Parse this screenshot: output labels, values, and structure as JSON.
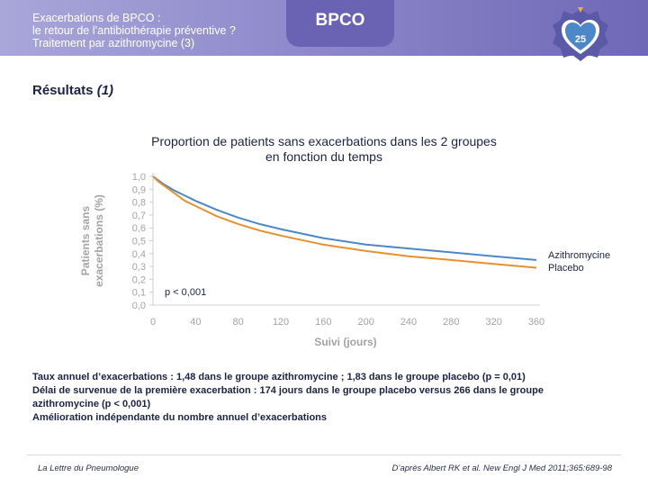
{
  "header": {
    "subtitle_lines": [
      "Exacerbations de BPCO :",
      "le retour de l’antibiothérapie préventive ?",
      "Traitement par azithromycine (3)"
    ],
    "tab_label": "BPCO",
    "badge_number": "25"
  },
  "section": {
    "title": "Résultats",
    "suffix": "(1)"
  },
  "chart_title_lines": [
    "Proportion de patients sans exacerbations dans les 2 groupes",
    "en fonction du temps"
  ],
  "chart_data": {
    "type": "line",
    "ylabel_lines": [
      "Patients sans",
      "exacerbations (%)"
    ],
    "xlabel": "Suivi (jours)",
    "xlim": [
      0,
      360
    ],
    "ylim": [
      0,
      1
    ],
    "x_ticks": [
      "0",
      "40",
      "80",
      "120",
      "160",
      "200",
      "240",
      "280",
      "320",
      "360"
    ],
    "y_ticks": [
      "0,0",
      "0,1",
      "0,2",
      "0,3",
      "0,4",
      "0,5",
      "0,6",
      "0,7",
      "0,8",
      "0,9",
      "1,0"
    ],
    "annotation": "p < 0,001",
    "series": [
      {
        "name": "Azithromycine",
        "color": "#4a88c7",
        "x": [
          0,
          5,
          10,
          20,
          30,
          40,
          60,
          80,
          100,
          120,
          160,
          200,
          240,
          280,
          320,
          360
        ],
        "y": [
          1.0,
          0.97,
          0.94,
          0.89,
          0.85,
          0.81,
          0.74,
          0.68,
          0.63,
          0.59,
          0.52,
          0.47,
          0.44,
          0.41,
          0.38,
          0.35
        ]
      },
      {
        "name": "Placebo",
        "color": "#e8902e",
        "x": [
          0,
          5,
          10,
          20,
          30,
          40,
          60,
          80,
          100,
          120,
          160,
          200,
          240,
          280,
          320,
          360
        ],
        "y": [
          1.0,
          0.96,
          0.93,
          0.87,
          0.81,
          0.77,
          0.69,
          0.63,
          0.58,
          0.54,
          0.47,
          0.42,
          0.38,
          0.35,
          0.32,
          0.29
        ]
      }
    ]
  },
  "bullets": [
    "Taux annuel d’exacerbations : 1,48 dans le groupe azithromycine ; 1,83 dans le groupe placebo (p = 0,01)",
    "Délai de survenue de la première exacerbation : 174 jours dans le groupe placebo versus 266 dans le groupe",
    "azithromycine (p < 0,001)",
    "Amélioration indépendante du nombre annuel d’exacerbations"
  ],
  "footer": {
    "left": "La Lettre du Pneumologue",
    "right": "D’après Albert RK et al. New Engl J Med 2011;365:689-98"
  }
}
